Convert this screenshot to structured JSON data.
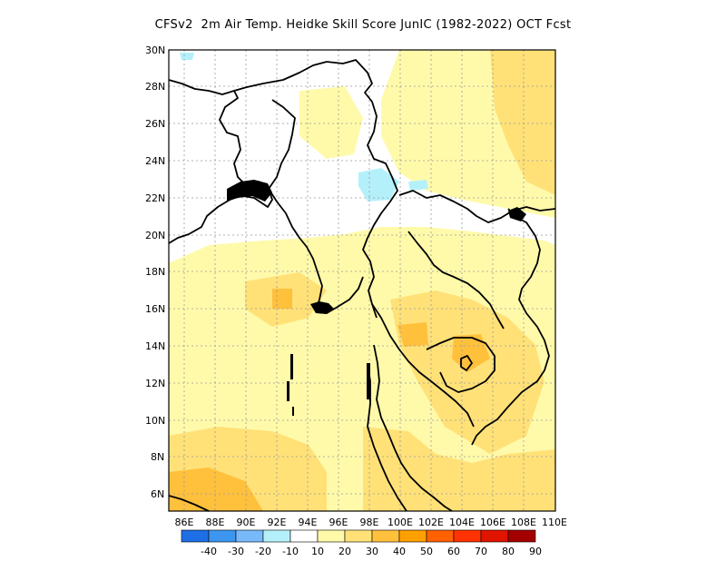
{
  "title": "CFSv2  2m Air Temp. Heidke Skill Score JunIC (1982-2022) OCT Fcst",
  "map": {
    "lat_labels": [
      "30N",
      "28N",
      "26N",
      "24N",
      "22N",
      "20N",
      "18N",
      "16N",
      "14N",
      "12N",
      "10N",
      "8N",
      "6N"
    ],
    "lon_labels": [
      "86E",
      "88E",
      "90E",
      "92E",
      "94E",
      "96E",
      "98E",
      "100E",
      "102E",
      "104E",
      "106E",
      "108E",
      "110E"
    ],
    "region": "South and Southeast Asia (Myanmar, Thailand, Indochina, Bay of Bengal)",
    "lat_range": [
      5,
      30
    ],
    "lon_range": [
      85,
      110
    ]
  },
  "colorbar": {
    "labels": [
      "-40",
      "-30",
      "-20",
      "-10",
      "10",
      "20",
      "30",
      "40",
      "50",
      "60",
      "70",
      "80",
      "90"
    ],
    "colors": [
      "#1e6ee6",
      "#3c96f0",
      "#78b9fa",
      "#b4f0fa",
      "#ffffff",
      "#fffaaa",
      "#ffe178",
      "#ffc03c",
      "#ffa000",
      "#ff6000",
      "#ff3200",
      "#e11400",
      "#a50000"
    ]
  },
  "fields": {
    "dominant": "#fffaaa",
    "moderate": "#ffe178",
    "strong": "#ffc03c",
    "negative": "#b4f0fa"
  }
}
